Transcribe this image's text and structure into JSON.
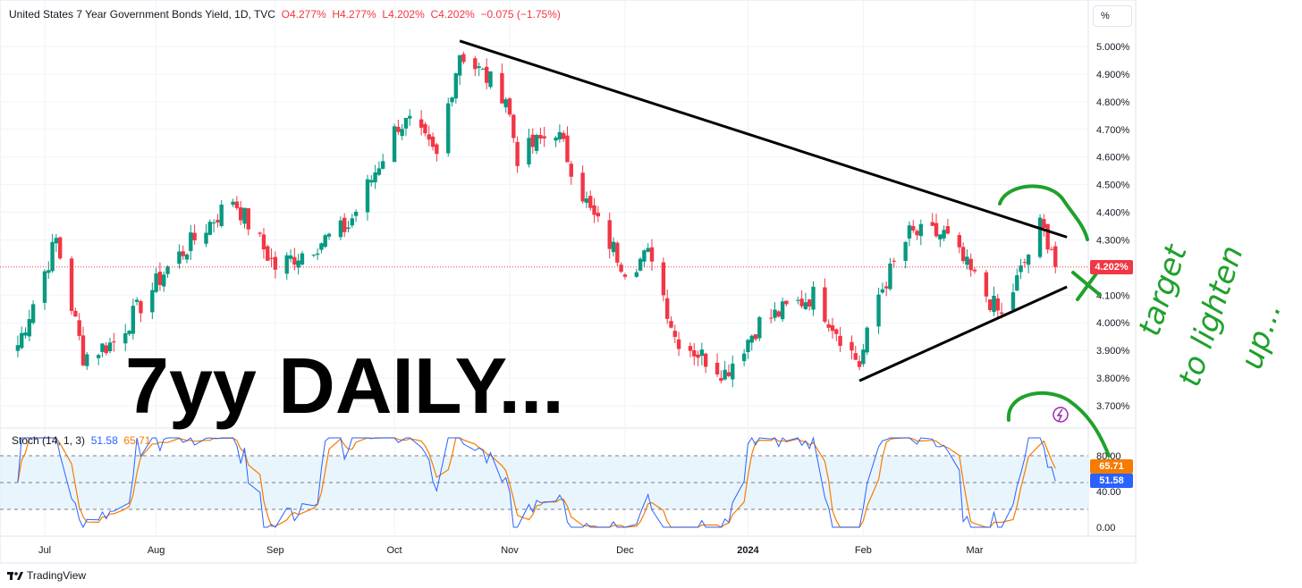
{
  "header": {
    "title": "United States 7 Year Government Bonds Yield, 1D, TVC",
    "open": "O4.277%",
    "high": "H4.277%",
    "low": "L4.202%",
    "close": "C4.202%",
    "change": "−0.075 (−1.75%)"
  },
  "unit_button": "%",
  "brand": "TradingView",
  "annotation": "7yy DAILY...",
  "handwritten_note": "target to lighten up...",
  "last_price_badge": "4.202%",
  "stoch": {
    "label": "Stoch (14, 1, 3)",
    "k_value": "51.58",
    "d_value": "65.71",
    "k_badge": "51.58",
    "d_badge": "65.71"
  },
  "colors": {
    "up": "#089981",
    "down": "#f23645",
    "stoch_k": "#2962ff",
    "stoch_d": "#f57c00",
    "band_fill": "#e3f2fd",
    "trendline": "#000000",
    "handwriting": "#1fa12b"
  },
  "chart_data": {
    "type": "candlestick",
    "y_axis": {
      "ticks": [
        "5.000%",
        "4.900%",
        "4.800%",
        "4.700%",
        "4.600%",
        "4.500%",
        "4.400%",
        "4.300%",
        "4.100%",
        "4.000%",
        "3.900%",
        "3.800%",
        "3.700%"
      ],
      "ylim": [
        3.65,
        5.05
      ],
      "unit": "%"
    },
    "x_axis": {
      "labels": [
        "Jul",
        "Aug",
        "Sep",
        "Oct",
        "Nov",
        "Dec",
        "2024",
        "Feb",
        "Mar"
      ]
    },
    "last_price": 4.202,
    "ohlc_anchors": [
      {
        "date": "2023-06-26",
        "close": 3.92
      },
      {
        "date": "2023-07-06",
        "close": 4.3
      },
      {
        "date": "2023-07-13",
        "close": 3.88
      },
      {
        "date": "2023-07-21",
        "close": 3.93
      },
      {
        "date": "2023-08-04",
        "close": 4.2
      },
      {
        "date": "2023-08-21",
        "close": 4.45
      },
      {
        "date": "2023-09-01",
        "close": 4.2
      },
      {
        "date": "2023-09-20",
        "close": 4.35
      },
      {
        "date": "2023-10-03",
        "close": 4.72
      },
      {
        "date": "2023-10-06",
        "close": 4.72
      },
      {
        "date": "2023-10-13",
        "close": 4.6
      },
      {
        "date": "2023-10-19",
        "close": 4.98
      },
      {
        "date": "2023-10-31",
        "close": 4.82
      },
      {
        "date": "2023-11-03",
        "close": 4.6
      },
      {
        "date": "2023-11-13",
        "close": 4.7
      },
      {
        "date": "2023-11-22",
        "close": 4.4
      },
      {
        "date": "2023-12-01",
        "close": 4.2
      },
      {
        "date": "2023-12-08",
        "close": 4.25
      },
      {
        "date": "2023-12-14",
        "close": 3.95
      },
      {
        "date": "2023-12-27",
        "close": 3.82
      },
      {
        "date": "2024-01-05",
        "close": 4.0
      },
      {
        "date": "2024-01-19",
        "close": 4.1
      },
      {
        "date": "2024-01-31",
        "close": 3.85
      },
      {
        "date": "2024-02-05",
        "close": 4.1
      },
      {
        "date": "2024-02-13",
        "close": 4.32
      },
      {
        "date": "2024-02-22",
        "close": 4.32
      },
      {
        "date": "2024-03-04",
        "close": 4.1
      },
      {
        "date": "2024-03-08",
        "close": 4.02
      },
      {
        "date": "2024-03-18",
        "close": 4.35
      },
      {
        "date": "2024-03-21",
        "close": 4.277
      },
      {
        "date": "2024-03-22",
        "close": 4.202
      }
    ],
    "trendlines": [
      {
        "from": {
          "date": "2023-10-19",
          "value": 5.02
        },
        "to": {
          "date": "2024-03-25",
          "value": 4.31
        }
      },
      {
        "from": {
          "date": "2024-01-31",
          "value": 3.79
        },
        "to": {
          "date": "2024-03-25",
          "value": 4.13
        }
      }
    ],
    "stochastic": {
      "period": "14, 1, 3",
      "band": [
        20,
        80
      ],
      "k_last": 51.58,
      "d_last": 65.71,
      "ticks": [
        "80.00",
        "40.00",
        "0.00"
      ]
    }
  }
}
